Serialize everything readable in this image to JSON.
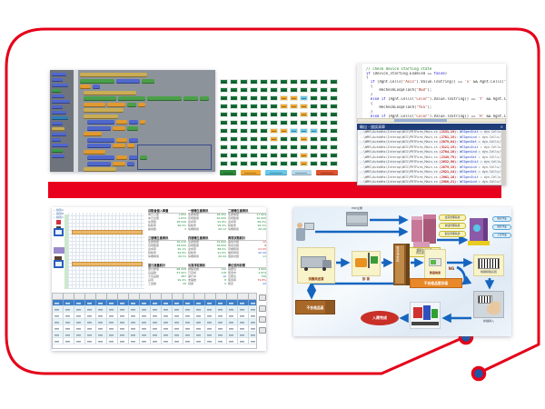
{
  "slide": {
    "bg": "#ffffff",
    "frame_color": "#e50019",
    "dot_color": "#1b57a7",
    "bar_color": "#e8001c"
  },
  "blockly": {
    "palette_bg": "#6f747c",
    "canvas_bg": "#8d939b",
    "palette": [
      [
        "#5068cc",
        16
      ],
      [
        "#5068cc",
        12
      ],
      [
        "#5068cc",
        18
      ],
      [
        "#3c9a4c",
        10
      ],
      [
        "#5068cc",
        14
      ],
      [
        "#5068cc",
        20
      ],
      [
        "#5068cc",
        12
      ],
      [
        "#5068cc",
        16
      ],
      [
        "#2f7fb8",
        18
      ],
      [
        "#5068cc",
        12
      ],
      [
        "#c9ac55",
        14
      ],
      [
        "#5068cc",
        16
      ],
      [
        "#5068cc",
        10
      ],
      [
        "#5068cc",
        18
      ],
      [
        "#3c9a4c",
        12
      ],
      [
        "#5068cc",
        14
      ]
    ],
    "rows": [
      {
        "i": 0,
        "s": [
          [
            "#c9ac55",
            74
          ]
        ]
      },
      {
        "i": 0,
        "s": [
          [
            "#4aa048",
            38
          ],
          [
            "#5068cc",
            26
          ],
          [
            "#4aa048",
            14
          ]
        ]
      },
      {
        "i": 0,
        "s": [
          [
            "#e09a30",
            12
          ],
          [
            "#5068cc",
            8
          ]
        ]
      },
      {
        "i": 4,
        "s": [
          [
            "#c9ac55",
            58
          ]
        ]
      },
      {
        "i": 4,
        "s": [
          [
            "#4aa048",
            36
          ],
          [
            "#4aa048",
            30
          ],
          [
            "#4aa048",
            38
          ],
          [
            "#4aa048",
            16
          ],
          [
            "#4aa048",
            10
          ]
        ]
      },
      {
        "i": 4,
        "s": [
          [
            "#e09a30",
            24
          ],
          [
            "#e09a30",
            20
          ],
          [
            "#4aa048",
            10
          ],
          [
            "#e09a30",
            8
          ]
        ]
      },
      {
        "i": 4,
        "s": [
          [
            "#c9ac55",
            44
          ]
        ]
      },
      {
        "i": 4,
        "s": [
          [
            "#c9ac55",
            38
          ]
        ]
      },
      {
        "i": 8,
        "s": [
          [
            "#5068cc",
            30
          ],
          [
            "#e09a30",
            12
          ],
          [
            "#5068cc",
            10
          ],
          [
            "#e09a30",
            6
          ]
        ]
      },
      {
        "i": 8,
        "s": [
          [
            "#5068cc",
            26
          ],
          [
            "#e09a30",
            14
          ],
          [
            "#4aa048",
            12
          ]
        ]
      },
      {
        "i": 4,
        "s": [
          [
            "#e09a30",
            20
          ]
        ]
      },
      {
        "i": 8,
        "s": [
          [
            "#5068cc",
            30
          ],
          [
            "#e09a30",
            12
          ],
          [
            "#5068cc",
            10
          ]
        ]
      },
      {
        "i": 8,
        "s": [
          [
            "#5068cc",
            26
          ],
          [
            "#e09a30",
            14
          ],
          [
            "#e09a30",
            8
          ]
        ]
      },
      {
        "i": 4,
        "s": [
          [
            "#e09a30",
            24
          ]
        ]
      },
      {
        "i": 8,
        "s": [
          [
            "#5068cc",
            30
          ],
          [
            "#e09a30",
            12
          ],
          [
            "#5068cc",
            10
          ],
          [
            "#4aa048",
            8
          ]
        ]
      },
      {
        "i": 8,
        "s": [
          [
            "#5068cc",
            26
          ],
          [
            "#e09a30",
            14
          ],
          [
            "#5068cc",
            8
          ]
        ]
      },
      {
        "i": 4,
        "s": [
          [
            "#c9ac55",
            36
          ]
        ]
      }
    ]
  },
  "status_grid": {
    "colors": {
      "G": "#17713a",
      "O": "#f2a72e",
      "C": "#63c7ea"
    },
    "rows": [
      "GGGGGGGGGGGG",
      "GGGGGGGGGGGG",
      "GGGGGGOOCGGG",
      "GGGGGGOOOGGG",
      "GGGGGGGGOGGG",
      "GGGGGGGGGGGG",
      "GGGGGOOCCCGG",
      "GGGGGOGGOGGG",
      "GGGGGGGGGGGG",
      "GGGGGGGGOGGG",
      "GGGGGGGGOGGG"
    ],
    "legend": [
      [
        "#2e8b3e",
        18
      ],
      [
        "#f2a72e",
        22
      ],
      [
        "#66c9ec",
        24
      ],
      [
        "#b8d8ec",
        22
      ],
      [
        "#e0532f",
        24
      ]
    ]
  },
  "code_editor": {
    "lines": [
      [
        [
          "cc",
          "// check device starting state"
        ]
      ],
      [
        [
          "ck",
          "if"
        ],
        [
          "cd",
          " (Device_starting.Enabled == "
        ],
        [
          "ck",
          "false"
        ],
        [
          "cd",
          ")"
        ]
      ],
      [
        [
          "cd",
          "{"
        ]
      ],
      [
        [
          "ck",
          "  if"
        ],
        [
          "cd",
          " (Agnt.Cells("
        ],
        [
          "cs",
          "\"Axis\""
        ],
        [
          "cd",
          ").Value.ToString() == "
        ],
        [
          "cs",
          "'x'"
        ],
        [
          "cd",
          " && Agnt.Cells("
        ],
        [
          "cs",
          "\"Axis2\""
        ],
        [
          "cd",
          ")..."
        ]
      ],
      [
        [
          "cd",
          "  {"
        ]
      ],
      [
        [
          "cd",
          "      RecheckLoopFlash("
        ],
        [
          "cs",
          "\"RED\""
        ],
        [
          "cd",
          ");"
        ]
      ],
      [
        [
          "cd",
          "  }"
        ]
      ],
      [
        [
          "ck",
          "  else if"
        ],
        [
          "cd",
          " (Agnt.Cells("
        ],
        [
          "cs",
          "\"Color\""
        ],
        [
          "cd",
          ").Value.ToString() == "
        ],
        [
          "cs",
          "'Y'"
        ],
        [
          "cd",
          " && Agnt.Cel..."
        ]
      ],
      [
        [
          "cd",
          "  {"
        ]
      ],
      [
        [
          "cd",
          "      RecheckLoopFlash("
        ],
        [
          "cs",
          "\"YES\""
        ],
        [
          "cd",
          ");"
        ]
      ],
      [
        [
          "cd",
          "  }"
        ]
      ],
      [
        [
          "ck",
          "  else if"
        ],
        [
          "cd",
          " (Agnt.Cells("
        ],
        [
          "cs",
          "\"Color\""
        ],
        [
          "cd",
          ").Value.ToString() == "
        ],
        [
          "cs",
          "'R'"
        ],
        [
          "cd",
          " && Agnt.Cel..."
        ]
      ]
    ],
    "log": {
      "title": "輸出 - 錯誤清單",
      "close": "×",
      "rows": [
        [
          [
            "d",
            "..\\WMS\\AutoWhs\\Interop\\WCS\\PRTForm_Main.cs "
          ],
          [
            "r",
            "(2151,19)"
          ],
          [
            "d",
            ": "
          ],
          [
            "b",
            "WCSgenInit"
          ],
          [
            "d",
            " = dyn.Cells(\"prtnRfv\").Value.ToString()"
          ]
        ],
        [
          [
            "d",
            "..\\WMS\\AutoWhs\\Interop\\WCS\\PRTForm_Main.cs "
          ],
          [
            "r",
            "(2701,19)"
          ],
          [
            "d",
            ": "
          ],
          [
            "b",
            "WCSgenLnd"
          ],
          [
            "d",
            " = dyn.Cells(\"prtnRfv\").Value.ToString()"
          ]
        ],
        [
          [
            "d",
            "..\\WMS\\AutoWhs\\Interop\\WCS\\PRTForm_Main.cs "
          ],
          [
            "r",
            "(2879,84)"
          ],
          [
            "d",
            ": "
          ],
          [
            "b",
            "WCSgenSet"
          ],
          [
            "d",
            " = dyn.Cells(\"prtnRfv\").Value.ToString()"
          ]
        ],
        [
          [
            "d",
            "..\\WMS\\AutoWhs\\Interop\\WCS\\PRTForm_Main.cs "
          ],
          [
            "r",
            "(3121,19)"
          ],
          [
            "d",
            ": "
          ],
          [
            "b",
            "WCSgenInit"
          ],
          [
            "d",
            " = dyn.Cells(\"prtnRfv\").Value.ToString()"
          ]
        ],
        [
          [
            "d",
            "..\\WMS\\AutoWhs\\Interop\\WCS\\PRTForm_Main.cs "
          ],
          [
            "r",
            "(2704,16)"
          ],
          [
            "d",
            ": "
          ],
          [
            "b",
            "WCSgenLnd"
          ],
          [
            "d",
            " = dyn.Cells(\"prtnRfv\").Value.ToString()"
          ]
        ],
        [
          [
            "d",
            "..\\WMS\\AutoWhs\\Interop\\WCS\\PRTForm_Main.cs "
          ],
          [
            "r",
            "(2349,79)"
          ],
          [
            "d",
            ": "
          ],
          [
            "b",
            "WCSgenSet"
          ],
          [
            "d",
            " = dyn.Cells(\"prtnRfv\").Value.ToString()"
          ]
        ],
        [
          [
            "d",
            "..\\WMS\\AutoWhs\\Interop\\WCS\\PRTForm_Main.cs "
          ],
          [
            "r",
            "(2632,98)"
          ],
          [
            "d",
            ": "
          ],
          [
            "b",
            "WCSgenInit"
          ],
          [
            "d",
            " = dyn.Cells(\"prtnRfv\").Value.ToString()"
          ]
        ],
        [
          [
            "d",
            "..\\WMS\\AutoWhs\\Interop\\WCS\\PRTForm_Main.cs "
          ],
          [
            "r",
            "(2879,19)"
          ],
          [
            "d",
            ": "
          ],
          [
            "b",
            "WCSgenLnd"
          ],
          [
            "d",
            " = dyn.Cells(\"prtnRfv\").Value.ToString()"
          ]
        ],
        [
          [
            "d",
            "..\\WMS\\AutoWhs\\Interop\\WCS\\PRTForm_Main.cs "
          ],
          [
            "r",
            "(2921,24)"
          ],
          [
            "d",
            ": "
          ],
          [
            "b",
            "WCSgenSet"
          ],
          [
            "d",
            " = dyn.Cells(\"prtnRfv\").Value.ToString()"
          ]
        ],
        [
          [
            "d",
            "..\\WMS\\AutoWhs\\Interop\\WCS\\PRTForm_Main.cs "
          ],
          [
            "r",
            "(2961,16)"
          ],
          [
            "d",
            ": "
          ],
          [
            "b",
            "WCSgenInit"
          ],
          [
            "d",
            " = dyn.Cells(\"prtnRfv\").Value.ToString()"
          ]
        ],
        [
          [
            "d",
            "..\\WMS\\AutoWhs\\Interop\\WCS\\PRTForm_Main.cs "
          ],
          [
            "r",
            "(2988,21)"
          ],
          [
            "d",
            ": "
          ],
          [
            "b",
            "WCSgenLnd"
          ],
          [
            "d",
            " = dyn.Cells(\"prtnRfv\").Value.ToString()"
          ]
        ]
      ]
    }
  },
  "scheduler": {
    "mini_legend": [
      "— 線別A",
      "— 線別B",
      "— 線別C"
    ],
    "panels": [
      {
        "t": "自動倉儲入庫量",
        "lines": [
          [
            "本日入庫",
            "1,852",
            "g"
          ],
          [
            "本日出庫",
            "1,634",
            "g"
          ],
          [
            "在庫數",
            "28,540",
            "g"
          ],
          [
            "稼動率",
            "96.2%",
            "g"
          ],
          [
            "異常數",
            "3",
            "g"
          ]
        ]
      },
      {
        "t": "一號機生產資訊",
        "lines": [
          [
            "生產數量",
            "18,352",
            "g"
          ],
          [
            "目標數量",
            "20,000",
            "g"
          ],
          [
            "達成率",
            "91.8%",
            "g"
          ],
          [
            "稼動率",
            "95.4%",
            "g"
          ],
          [
            "停機時間",
            "00:12",
            "g"
          ]
        ]
      },
      {
        "t": "二號機生產資訊",
        "lines": [
          [
            "生產數量",
            "17,904",
            "g"
          ],
          [
            "目標數量",
            "20,000",
            "g"
          ],
          [
            "達成率",
            "89.5%",
            "g"
          ],
          [
            "稼動率",
            "94.1%",
            "g"
          ],
          [
            "停機時間",
            "00:26",
            "g"
          ]
        ]
      },
      {
        "t": "三號機生產資訊",
        "lines": [
          [
            "生產數量",
            "16,210",
            "g"
          ],
          [
            "目標數量",
            "18,000",
            "g"
          ],
          [
            "達成率",
            "90.1%",
            "g"
          ],
          [
            "稼動率",
            "92.8%",
            "g"
          ],
          [
            "停機時間",
            "00:31",
            "g"
          ]
        ]
      },
      {
        "t": "四號機生產資訊",
        "lines": [
          [
            "生產數量",
            "15,842",
            "g"
          ],
          [
            "目標數量",
            "18,000",
            "g"
          ],
          [
            "達成率",
            "88.0%",
            "g"
          ],
          [
            "稼動率",
            "91.6%",
            "g"
          ],
          [
            "停機時間",
            "00:44",
            "g"
          ]
        ]
      },
      {
        "t": "異常狀態統計",
        "lines": [
          [
            "異常次數",
            "12",
            "r"
          ],
          [
            "警報次數",
            "8",
            "r"
          ],
          [
            "待機時間",
            "01:05",
            "r"
          ],
          [
            "維修時間",
            "00:40",
            "b"
          ],
          [
            "復歸次數",
            "11",
            "g"
          ]
        ]
      },
      {
        "t": "當日產量統計",
        "lines": [
          [
            "累計產量",
            "68,308",
            "g"
          ],
          [
            "良品數",
            "67,921",
            "g"
          ],
          [
            "不良品數",
            "387",
            "g"
          ],
          [
            "良率",
            "99.4%",
            "g"
          ],
          [
            "工單數",
            "26",
            "g"
          ]
        ]
      },
      {
        "t": "出貨排程資訊",
        "lines": [
          [
            "排程筆數",
            "142",
            "g"
          ],
          [
            "已完成",
            "118",
            "g"
          ],
          [
            "進行中",
            "16",
            "b"
          ],
          [
            "未開始",
            "8",
            "g"
          ],
          [
            "延誤",
            "0",
            "g"
          ]
        ]
      },
      {
        "t": "庫位使用狀態",
        "lines": [
          [
            "總庫位",
            "3,600",
            "g"
          ],
          [
            "使用中",
            "2,874",
            "g"
          ],
          [
            "空庫位",
            "726",
            "g"
          ],
          [
            "使用率",
            "79.8%",
            "r"
          ],
          [
            "鎖定",
            "42",
            "b"
          ]
        ]
      }
    ],
    "table": {
      "rows": [
        {
          "sel": true
        },
        {
          "sel": false
        },
        {
          "sel": false
        },
        {
          "sel": false
        },
        {
          "sel": false
        },
        {
          "sel": false
        },
        {
          "sel": false
        }
      ]
    }
  },
  "flowchart": {
    "erp_label": "ERP主機",
    "pills_yellow": [
      "出貨管理系統",
      "倉儲管理系統",
      "製造管理系統"
    ],
    "host_label_1": "獲取生產進度",
    "host_label_2": "資訊主機24hr",
    "pills_blue": [
      "收貨作業",
      "販售作業",
      "上架作業"
    ],
    "truck": "供應商送貨",
    "unload": "卸 貨",
    "rack": "暫存待檢區",
    "check": "數量檢查",
    "barcode": "條碼標籤系統",
    "ng": "NG",
    "ng_area": "不合格品暫存區",
    "reject": "不合格品區",
    "done": "入庫完成",
    "scan": "掃描歸入"
  }
}
